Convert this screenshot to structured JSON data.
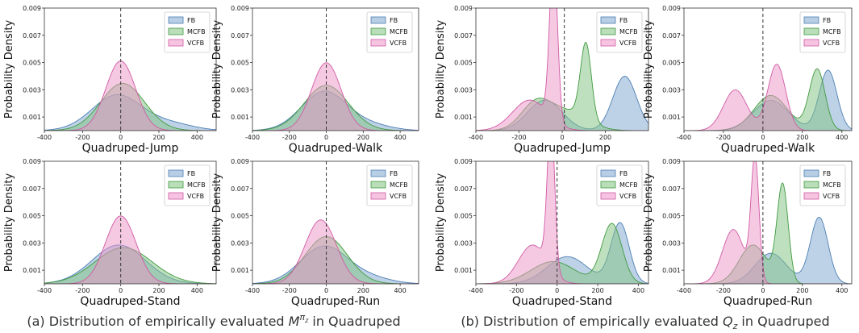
{
  "colors": {
    "FB": "#7ea6cf",
    "MCFB": "#7fc27f",
    "VCFB": "#ee93c8",
    "FB_edge": "#4c7fb2",
    "MCFB_edge": "#3f9a3f",
    "VCFB_edge": "#d05aa4"
  },
  "captions": [
    {
      "text": "(a) Distribution of empirically evaluated M^{π_z} in Quadruped",
      "prefix": "(a) Distribution of empirically evaluated ",
      "math_base": "M",
      "math_sup": "π",
      "math_sub": "z",
      "suffix": " in Quadruped"
    },
    {
      "text": "(b) Distribution of empirically evaluated Q_z in Quadruped",
      "prefix": "(b) Distribution of empirically evaluated ",
      "math_base": "Q",
      "math_sub": "z",
      "suffix": " in Quadruped"
    }
  ],
  "chart_data": [
    {
      "type": "area",
      "title": "",
      "xlabel": "Quadruped-Jump",
      "ylabel": "Probability Density",
      "xlim": [
        -400,
        500
      ],
      "ylim": [
        0,
        0.009
      ],
      "xticks": [
        -400,
        -200,
        0,
        200,
        400
      ],
      "yticks": [
        0.001,
        0.003,
        0.005,
        0.007,
        0.009
      ],
      "vline_x": 0,
      "legend": "top-right",
      "series": [
        {
          "name": "FB",
          "components": [
            {
              "w": 0.85,
              "mu": -20,
              "sd": 130
            },
            {
              "w": 0.15,
              "mu": 260,
              "sd": 120
            }
          ]
        },
        {
          "name": "MCFB",
          "components": [
            {
              "w": 1.0,
              "mu": 10,
              "sd": 115
            }
          ]
        },
        {
          "name": "VCFB",
          "components": [
            {
              "w": 1.0,
              "mu": 0,
              "sd": 78
            }
          ]
        }
      ]
    },
    {
      "type": "area",
      "title": "",
      "xlabel": "Quadruped-Walk",
      "ylabel": "Probability Density",
      "xlim": [
        -400,
        500
      ],
      "ylim": [
        0,
        0.009
      ],
      "xticks": [
        -400,
        -200,
        0,
        200,
        400
      ],
      "yticks": [
        0.001,
        0.003,
        0.005,
        0.007,
        0.009
      ],
      "vline_x": 0,
      "legend": "top-right",
      "series": [
        {
          "name": "FB",
          "components": [
            {
              "w": 0.9,
              "mu": -10,
              "sd": 125
            },
            {
              "w": 0.1,
              "mu": 250,
              "sd": 110
            }
          ]
        },
        {
          "name": "MCFB",
          "components": [
            {
              "w": 1.0,
              "mu": 0,
              "sd": 120
            }
          ]
        },
        {
          "name": "VCFB",
          "components": [
            {
              "w": 1.0,
              "mu": 0,
              "sd": 80
            }
          ]
        }
      ]
    },
    {
      "type": "area",
      "title": "",
      "xlabel": "Quadruped-Stand",
      "ylabel": "Probability Density",
      "xlim": [
        -400,
        500
      ],
      "ylim": [
        0,
        0.009
      ],
      "xticks": [
        -400,
        -200,
        0,
        200,
        400
      ],
      "yticks": [
        0.001,
        0.003,
        0.005,
        0.007,
        0.009
      ],
      "vline_x": 0,
      "legend": "top-right",
      "series": [
        {
          "name": "FB",
          "components": [
            {
              "w": 1.0,
              "mu": -10,
              "sd": 140
            }
          ]
        },
        {
          "name": "MCFB",
          "components": [
            {
              "w": 1.0,
              "mu": 15,
              "sd": 150
            }
          ]
        },
        {
          "name": "VCFB",
          "components": [
            {
              "w": 1.0,
              "mu": 0,
              "sd": 80
            }
          ]
        }
      ]
    },
    {
      "type": "area",
      "title": "",
      "xlabel": "Quadruped-Run",
      "ylabel": "Probability Density",
      "xlim": [
        -400,
        500
      ],
      "ylim": [
        0,
        0.009
      ],
      "xticks": [
        -400,
        -200,
        0,
        200,
        400
      ],
      "yticks": [
        0.001,
        0.003,
        0.005,
        0.007,
        0.009
      ],
      "vline_x": 0,
      "legend": "top-right",
      "series": [
        {
          "name": "FB",
          "components": [
            {
              "w": 0.9,
              "mu": -10,
              "sd": 130
            },
            {
              "w": 0.1,
              "mu": 250,
              "sd": 110
            }
          ]
        },
        {
          "name": "MCFB",
          "components": [
            {
              "w": 1.0,
              "mu": 0,
              "sd": 115
            }
          ]
        },
        {
          "name": "VCFB",
          "components": [
            {
              "w": 1.0,
              "mu": -30,
              "sd": 85
            }
          ]
        }
      ]
    },
    {
      "type": "area",
      "title": "",
      "xlabel": "Quadruped-Jump",
      "ylabel": "Probability Density",
      "xlim": [
        -400,
        400
      ],
      "ylim": [
        0,
        0.009
      ],
      "xticks": [
        -400,
        -200,
        0,
        200
      ],
      "yticks": [
        0.001,
        0.003,
        0.005,
        0.007,
        0.009
      ],
      "vline_x": 10,
      "legend": "top-right",
      "series": [
        {
          "name": "FB",
          "components": [
            {
              "w": 0.45,
              "mu": -80,
              "sd": 80
            },
            {
              "w": 0.55,
              "mu": 290,
              "sd": 55
            }
          ]
        },
        {
          "name": "MCFB",
          "components": [
            {
              "w": 0.35,
              "mu": -120,
              "sd": 70
            },
            {
              "w": 0.35,
              "mu": 110,
              "sd": 25
            },
            {
              "w": 0.3,
              "mu": 30,
              "sd": 90
            }
          ]
        },
        {
          "name": "VCFB",
          "components": [
            {
              "w": 0.55,
              "mu": -40,
              "sd": 18
            },
            {
              "w": 0.45,
              "mu": -150,
              "sd": 80
            }
          ]
        }
      ]
    },
    {
      "type": "area",
      "title": "",
      "xlabel": "Quadruped-Walk",
      "ylabel": "Probability Density",
      "xlim": [
        -400,
        450
      ],
      "ylim": [
        0,
        0.009
      ],
      "xticks": [
        -400,
        -200,
        0,
        200,
        400
      ],
      "yticks": [
        0.001,
        0.003,
        0.005,
        0.007,
        0.009
      ],
      "vline_x": 0,
      "legend": "top-right",
      "series": [
        {
          "name": "FB",
          "components": [
            {
              "w": 0.5,
              "mu": 40,
              "sd": 90
            },
            {
              "w": 0.5,
              "mu": 330,
              "sd": 45
            }
          ]
        },
        {
          "name": "MCFB",
          "components": [
            {
              "w": 0.55,
              "mu": 40,
              "sd": 85
            },
            {
              "w": 0.45,
              "mu": 275,
              "sd": 40
            }
          ]
        },
        {
          "name": "VCFB",
          "components": [
            {
              "w": 0.45,
              "mu": -140,
              "sd": 60
            },
            {
              "w": 0.55,
              "mu": 70,
              "sd": 45
            }
          ]
        }
      ]
    },
    {
      "type": "area",
      "title": "",
      "xlabel": "Quadruped-Stand",
      "ylabel": "Probability Density",
      "xlim": [
        -400,
        450
      ],
      "ylim": [
        0,
        0.009
      ],
      "xticks": [
        -400,
        -200,
        0,
        200,
        400
      ],
      "yticks": [
        0.001,
        0.003,
        0.005,
        0.007,
        0.009
      ],
      "vline_x": 0,
      "legend": "top-right",
      "series": [
        {
          "name": "FB",
          "components": [
            {
              "w": 0.5,
              "mu": 50,
              "sd": 100
            },
            {
              "w": 0.5,
              "mu": 310,
              "sd": 45
            }
          ]
        },
        {
          "name": "MCFB",
          "components": [
            {
              "w": 0.45,
              "mu": -20,
              "sd": 110
            },
            {
              "w": 0.55,
              "mu": 270,
              "sd": 50
            }
          ]
        },
        {
          "name": "VCFB",
          "components": [
            {
              "w": 0.5,
              "mu": -30,
              "sd": 18
            },
            {
              "w": 0.5,
              "mu": -120,
              "sd": 70
            }
          ]
        }
      ]
    },
    {
      "type": "area",
      "title": "",
      "xlabel": "Quadruped-Run",
      "ylabel": "Probability Density",
      "xlim": [
        -400,
        450
      ],
      "ylim": [
        0,
        0.009
      ],
      "xticks": [
        -400,
        -200,
        0,
        200,
        400
      ],
      "yticks": [
        0.001,
        0.003,
        0.005,
        0.007,
        0.009
      ],
      "vline_x": 0,
      "legend": "top-right",
      "series": [
        {
          "name": "FB",
          "components": [
            {
              "w": 0.45,
              "mu": 40,
              "sd": 80
            },
            {
              "w": 0.55,
              "mu": 285,
              "sd": 45
            }
          ]
        },
        {
          "name": "MCFB",
          "components": [
            {
              "w": 0.5,
              "mu": -50,
              "sd": 70
            },
            {
              "w": 0.5,
              "mu": 100,
              "sd": 28
            }
          ]
        },
        {
          "name": "VCFB",
          "components": [
            {
              "w": 0.45,
              "mu": -40,
              "sd": 20
            },
            {
              "w": 0.55,
              "mu": -150,
              "sd": 55
            }
          ]
        }
      ]
    }
  ]
}
